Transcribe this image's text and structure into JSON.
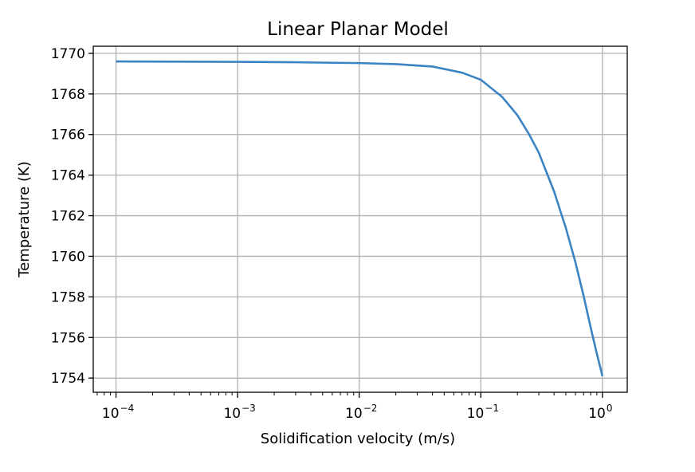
{
  "chart_data": {
    "type": "line",
    "title": "Linear Planar Model",
    "xlabel": "Solidification velocity (m/s)",
    "ylabel": "Temperature (K)",
    "xscale": "log",
    "xlim": [
      6.5e-05,
      1.6
    ],
    "ylim": [
      1753.3,
      1770.35
    ],
    "grid": true,
    "x_ticks": [
      {
        "base": "10",
        "exp": "−4",
        "value": 0.0001
      },
      {
        "base": "10",
        "exp": "−3",
        "value": 0.001
      },
      {
        "base": "10",
        "exp": "−2",
        "value": 0.01
      },
      {
        "base": "10",
        "exp": "−1",
        "value": 0.1
      },
      {
        "base": "10",
        "exp": "0",
        "value": 1
      }
    ],
    "y_ticks": [
      1754,
      1756,
      1758,
      1760,
      1762,
      1764,
      1766,
      1768,
      1770
    ],
    "series": [
      {
        "color": "#3b84c4",
        "x": [
          0.0001,
          0.0003,
          0.001,
          0.003,
          0.01,
          0.02,
          0.04,
          0.07,
          0.1,
          0.15,
          0.2,
          0.25,
          0.3,
          0.4,
          0.5,
          0.6,
          0.7,
          0.8,
          0.9,
          1.0
        ],
        "y": [
          1769.6,
          1769.59,
          1769.58,
          1769.56,
          1769.52,
          1769.47,
          1769.35,
          1769.05,
          1768.7,
          1767.85,
          1766.95,
          1766.0,
          1765.1,
          1763.2,
          1761.4,
          1759.7,
          1758.05,
          1756.5,
          1755.2,
          1754.1
        ]
      }
    ]
  }
}
